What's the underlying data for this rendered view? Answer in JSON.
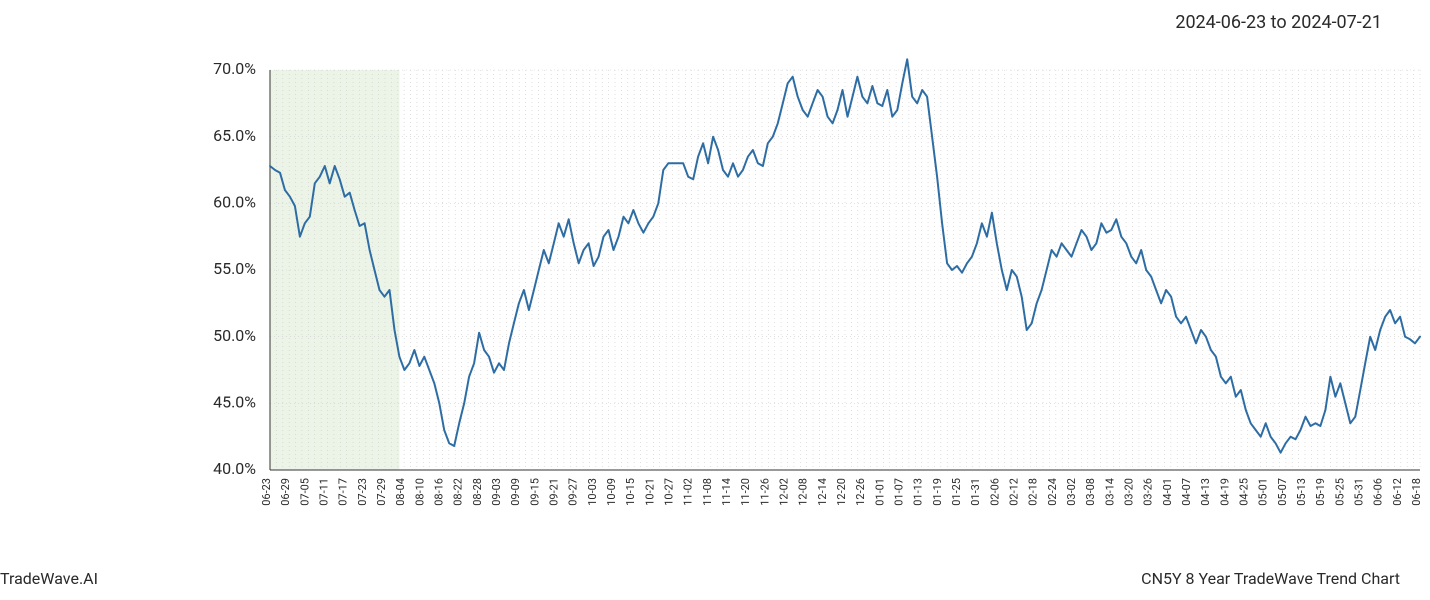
{
  "header": {
    "date_range": "2024-06-23 to 2024-07-21"
  },
  "footer": {
    "left": "TradeWave.AI",
    "right": "CN5Y 8 Year TradeWave Trend Chart"
  },
  "chart": {
    "type": "line",
    "line_color": "#2e6da4",
    "line_width": 2,
    "background_color": "#ffffff",
    "highlight_band": {
      "start_index": 0,
      "end_index": 14,
      "fill": "#e3efdd",
      "opacity": 0.7
    },
    "grid": {
      "color": "#cccccc",
      "dash": "1,3",
      "width": 0.6
    },
    "spine_color": "#333333",
    "y_axis": {
      "min": 40,
      "max": 70,
      "step": 5,
      "tick_labels": [
        "40.0%",
        "45.0%",
        "50.0%",
        "55.0%",
        "60.0%",
        "65.0%",
        "70.0%"
      ],
      "font_size": 16,
      "text_color": "#2a2a2a"
    },
    "x_axis": {
      "tick_every": 3,
      "labels": [
        "06-23",
        "06-29",
        "07-05",
        "07-11",
        "07-17",
        "07-23",
        "07-29",
        "08-04",
        "08-10",
        "08-16",
        "08-22",
        "08-28",
        "09-03",
        "09-09",
        "09-15",
        "09-21",
        "09-27",
        "10-03",
        "10-09",
        "10-15",
        "10-21",
        "10-27",
        "11-02",
        "11-08",
        "11-14",
        "11-20",
        "11-26",
        "12-02",
        "12-08",
        "12-14",
        "12-20",
        "12-26",
        "01-01",
        "01-07",
        "01-13",
        "01-19",
        "01-25",
        "01-31",
        "02-06",
        "02-12",
        "02-18",
        "02-24",
        "03-02",
        "03-08",
        "03-14",
        "03-20",
        "03-26",
        "04-01",
        "04-07",
        "04-13",
        "04-19",
        "04-25",
        "05-01",
        "05-07",
        "05-13",
        "05-19",
        "05-25",
        "05-31",
        "06-06",
        "06-12",
        "06-18"
      ],
      "font_size": 11,
      "text_color": "#2a2a2a"
    },
    "series": [
      62.8,
      62.5,
      62.3,
      61.0,
      60.5,
      59.8,
      57.5,
      58.5,
      59.0,
      61.5,
      62.0,
      62.8,
      61.5,
      62.8,
      61.8,
      60.5,
      60.8,
      59.5,
      58.3,
      58.5,
      56.5,
      55.0,
      53.5,
      53.0,
      53.5,
      50.5,
      48.5,
      47.5,
      48.0,
      49.0,
      47.8,
      48.5,
      47.5,
      46.5,
      45.0,
      43.0,
      42.0,
      41.8,
      43.5,
      45.0,
      47.0,
      48.0,
      50.3,
      49.0,
      48.5,
      47.3,
      48.0,
      47.5,
      49.5,
      51.0,
      52.5,
      53.5,
      52.0,
      53.5,
      55.0,
      56.5,
      55.5,
      57.0,
      58.5,
      57.5,
      58.8,
      57.0,
      55.5,
      56.5,
      57.0,
      55.3,
      56.0,
      57.5,
      58.0,
      56.5,
      57.5,
      59.0,
      58.5,
      59.5,
      58.5,
      57.8,
      58.5,
      59.0,
      60.0,
      62.5,
      63.0,
      63.0,
      63.0,
      63.0,
      62.0,
      61.8,
      63.5,
      64.5,
      63.0,
      65.0,
      64.0,
      62.5,
      62.0,
      63.0,
      62.0,
      62.5,
      63.5,
      64.0,
      63.0,
      62.8,
      64.5,
      65.0,
      66.0,
      67.5,
      69.0,
      69.5,
      68.0,
      67.0,
      66.5,
      67.5,
      68.5,
      68.0,
      66.5,
      66.0,
      67.0,
      68.5,
      66.5,
      68.0,
      69.5,
      68.0,
      67.5,
      68.8,
      67.5,
      67.3,
      68.5,
      66.5,
      67.0,
      69.0,
      70.8,
      68.0,
      67.5,
      68.5,
      68.0,
      65.0,
      62.0,
      58.5,
      55.5,
      55.0,
      55.3,
      54.8,
      55.5,
      56.0,
      57.0,
      58.5,
      57.5,
      59.3,
      57.0,
      55.0,
      53.5,
      55.0,
      54.5,
      53.0,
      50.5,
      51.0,
      52.5,
      53.5,
      55.0,
      56.5,
      56.0,
      57.0,
      56.5,
      56.0,
      57.0,
      58.0,
      57.5,
      56.5,
      57.0,
      58.5,
      57.8,
      58.0,
      58.8,
      57.5,
      57.0,
      56.0,
      55.5,
      56.5,
      55.0,
      54.5,
      53.5,
      52.5,
      53.5,
      53.0,
      51.5,
      51.0,
      51.5,
      50.5,
      49.5,
      50.5,
      50.0,
      49.0,
      48.5,
      47.0,
      46.5,
      47.0,
      45.5,
      46.0,
      44.5,
      43.5,
      43.0,
      42.5,
      43.5,
      42.5,
      42.0,
      41.3,
      42.0,
      42.5,
      42.3,
      43.0,
      44.0,
      43.3,
      43.5,
      43.3,
      44.5,
      47.0,
      45.5,
      46.5,
      45.0,
      43.5,
      44.0,
      46.0,
      48.0,
      50.0,
      49.0,
      50.5,
      51.5,
      52.0,
      51.0,
      51.5,
      50.0,
      49.8,
      49.5,
      50.0
    ]
  }
}
